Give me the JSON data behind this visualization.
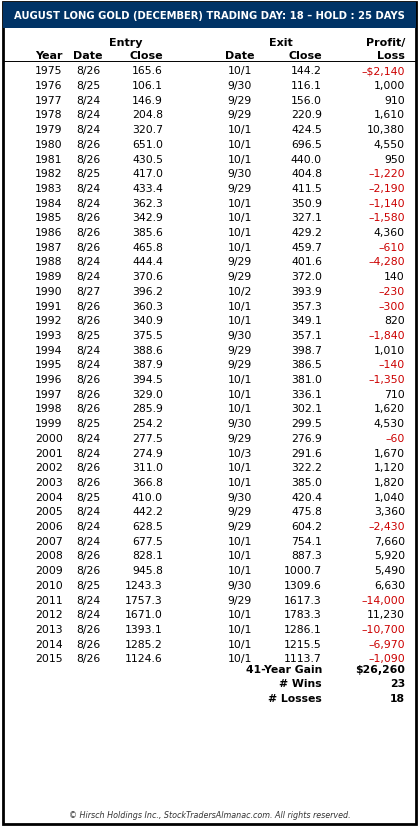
{
  "title": "AUGUST LONG GOLD (DECEMBER) TRADING DAY: 18 – HOLD : 25 DAYS",
  "rows": [
    [
      "1975",
      "8/26",
      "165.6",
      "10/1",
      "144.2",
      "–$2,140"
    ],
    [
      "1976",
      "8/25",
      "106.1",
      "9/30",
      "116.1",
      "1,000"
    ],
    [
      "1977",
      "8/24",
      "146.9",
      "9/29",
      "156.0",
      "910"
    ],
    [
      "1978",
      "8/24",
      "204.8",
      "9/29",
      "220.9",
      "1,610"
    ],
    [
      "1979",
      "8/24",
      "320.7",
      "10/1",
      "424.5",
      "10,380"
    ],
    [
      "1980",
      "8/26",
      "651.0",
      "10/1",
      "696.5",
      "4,550"
    ],
    [
      "1981",
      "8/26",
      "430.5",
      "10/1",
      "440.0",
      "950"
    ],
    [
      "1982",
      "8/25",
      "417.0",
      "9/30",
      "404.8",
      "–1,220"
    ],
    [
      "1983",
      "8/24",
      "433.4",
      "9/29",
      "411.5",
      "–2,190"
    ],
    [
      "1984",
      "8/24",
      "362.3",
      "10/1",
      "350.9",
      "–1,140"
    ],
    [
      "1985",
      "8/26",
      "342.9",
      "10/1",
      "327.1",
      "–1,580"
    ],
    [
      "1986",
      "8/26",
      "385.6",
      "10/1",
      "429.2",
      "4,360"
    ],
    [
      "1987",
      "8/26",
      "465.8",
      "10/1",
      "459.7",
      "–610"
    ],
    [
      "1988",
      "8/24",
      "444.4",
      "9/29",
      "401.6",
      "–4,280"
    ],
    [
      "1989",
      "8/24",
      "370.6",
      "9/29",
      "372.0",
      "140"
    ],
    [
      "1990",
      "8/27",
      "396.2",
      "10/2",
      "393.9",
      "–230"
    ],
    [
      "1991",
      "8/26",
      "360.3",
      "10/1",
      "357.3",
      "–300"
    ],
    [
      "1992",
      "8/26",
      "340.9",
      "10/1",
      "349.1",
      "820"
    ],
    [
      "1993",
      "8/25",
      "375.5",
      "9/30",
      "357.1",
      "–1,840"
    ],
    [
      "1994",
      "8/24",
      "388.6",
      "9/29",
      "398.7",
      "1,010"
    ],
    [
      "1995",
      "8/24",
      "387.9",
      "9/29",
      "386.5",
      "–140"
    ],
    [
      "1996",
      "8/26",
      "394.5",
      "10/1",
      "381.0",
      "–1,350"
    ],
    [
      "1997",
      "8/26",
      "329.0",
      "10/1",
      "336.1",
      "710"
    ],
    [
      "1998",
      "8/26",
      "285.9",
      "10/1",
      "302.1",
      "1,620"
    ],
    [
      "1999",
      "8/25",
      "254.2",
      "9/30",
      "299.5",
      "4,530"
    ],
    [
      "2000",
      "8/24",
      "277.5",
      "9/29",
      "276.9",
      "–60"
    ],
    [
      "2001",
      "8/24",
      "274.9",
      "10/3",
      "291.6",
      "1,670"
    ],
    [
      "2002",
      "8/26",
      "311.0",
      "10/1",
      "322.2",
      "1,120"
    ],
    [
      "2003",
      "8/26",
      "366.8",
      "10/1",
      "385.0",
      "1,820"
    ],
    [
      "2004",
      "8/25",
      "410.0",
      "9/30",
      "420.4",
      "1,040"
    ],
    [
      "2005",
      "8/24",
      "442.2",
      "9/29",
      "475.8",
      "3,360"
    ],
    [
      "2006",
      "8/24",
      "628.5",
      "9/29",
      "604.2",
      "–2,430"
    ],
    [
      "2007",
      "8/24",
      "677.5",
      "10/1",
      "754.1",
      "7,660"
    ],
    [
      "2008",
      "8/26",
      "828.1",
      "10/1",
      "887.3",
      "5,920"
    ],
    [
      "2009",
      "8/26",
      "945.8",
      "10/1",
      "1000.7",
      "5,490"
    ],
    [
      "2010",
      "8/25",
      "1243.3",
      "9/30",
      "1309.6",
      "6,630"
    ],
    [
      "2011",
      "8/24",
      "1757.3",
      "9/29",
      "1617.3",
      "–14,000"
    ],
    [
      "2012",
      "8/24",
      "1671.0",
      "10/1",
      "1783.3",
      "11,230"
    ],
    [
      "2013",
      "8/26",
      "1393.1",
      "10/1",
      "1286.1",
      "–10,700"
    ],
    [
      "2014",
      "8/26",
      "1285.2",
      "10/1",
      "1215.5",
      "–6,970"
    ],
    [
      "2015",
      "8/26",
      "1124.6",
      "10/1",
      "1113.7",
      "–1,090"
    ]
  ],
  "neg_profit_indices": [
    0,
    7,
    8,
    9,
    10,
    12,
    13,
    15,
    16,
    18,
    20,
    21,
    25,
    31,
    36,
    38,
    39,
    40
  ],
  "summary_labels": [
    "41-Year Gain",
    "# Wins",
    "# Losses"
  ],
  "summary_values": [
    "$26,260",
    "23",
    "18"
  ],
  "footer": "© Hirsch Holdings Inc., StockTradersAlmanac.com. All rights reserved.",
  "title_bg": "#003366",
  "title_color": "#ffffff",
  "neg_color": "#cc0000",
  "pos_color": "#000000",
  "border_color": "#000000",
  "bg_color": "#ffffff",
  "fig_width": 4.19,
  "fig_height": 8.28,
  "dpi": 100
}
